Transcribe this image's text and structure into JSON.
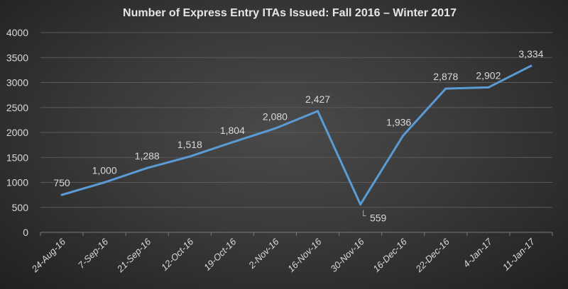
{
  "chart_data": {
    "type": "line",
    "title": "Number of Express Entry ITAs Issued: Fall 2016 – Winter 2017",
    "categories": [
      "24-Aug-16",
      "7-Sep-16",
      "21-Sep-16",
      "12-Oct-16",
      "19-Oct-16",
      "2-Nov-16",
      "16-Nov-16",
      "30-Nov-16",
      "16-Dec-16",
      "22-Dec-16",
      "4-Jan-17",
      "11-Jan-17"
    ],
    "values": [
      750,
      1000,
      1288,
      1518,
      1804,
      2080,
      2427,
      559,
      1936,
      2878,
      2902,
      3334
    ],
    "data_labels": [
      "750",
      "1,000",
      "1,288",
      "1,518",
      "1,804",
      "2,080",
      "2,427",
      "559",
      "1,936",
      "2,878",
      "2,902",
      "3,334"
    ],
    "ylim": [
      0,
      4000
    ],
    "yticks": [
      "0",
      "500",
      "1000",
      "1500",
      "2000",
      "2500",
      "3000",
      "3500",
      "4000"
    ],
    "grid": true,
    "legend": "none",
    "colors": {
      "line": "#5b9bd5",
      "text": "#d9d9d9",
      "grid": "#5a5a5a"
    }
  }
}
